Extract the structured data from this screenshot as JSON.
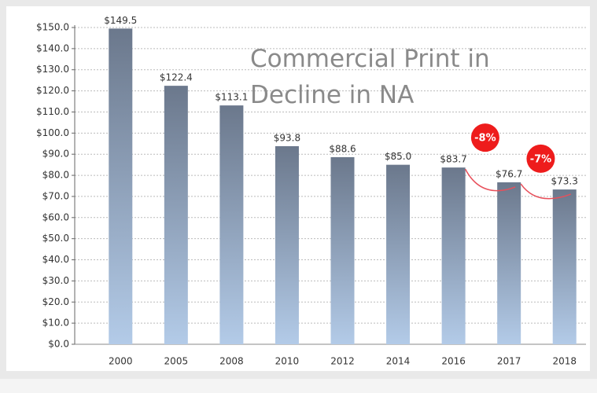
{
  "chart_data": {
    "type": "bar",
    "title": "Commercial Print in Decline in NA",
    "categories": [
      "2000",
      "2005",
      "2008",
      "2010",
      "2012",
      "2014",
      "2016",
      "2017",
      "2018"
    ],
    "values": [
      149.5,
      122.4,
      113.1,
      93.8,
      88.6,
      85.0,
      83.7,
      76.7,
      73.3
    ],
    "value_labels": [
      "$149.5",
      "$122.4",
      "$113.1",
      "$93.8",
      "$88.6",
      "$85.0",
      "$83.7",
      "$76.7",
      "$73.3"
    ],
    "colors": [
      "#6b788c",
      "#b3cbe8"
    ],
    "ylim": [
      0,
      150
    ],
    "yticks": [
      {
        "value": 0,
        "label": "$0.0"
      },
      {
        "value": 10,
        "label": "$10.0"
      },
      {
        "value": 20,
        "label": "$20.0"
      },
      {
        "value": 30,
        "label": "$30.0"
      },
      {
        "value": 40,
        "label": "$40.0"
      },
      {
        "value": 50,
        "label": "$50.0"
      },
      {
        "value": 60,
        "label": "$60.0"
      },
      {
        "value": 70,
        "label": "$70.0"
      },
      {
        "value": 80,
        "label": "$80.0"
      },
      {
        "value": 90,
        "label": "$90.0"
      },
      {
        "value": 100,
        "label": "$100.0"
      },
      {
        "value": 110,
        "label": "$110.0"
      },
      {
        "value": 120,
        "label": "$120.0"
      },
      {
        "value": 130,
        "label": "$130.0"
      },
      {
        "value": 140,
        "label": "$140.0"
      },
      {
        "value": 150,
        "label": "$150.0"
      }
    ],
    "grid": true,
    "annotations": [
      "-8%",
      "-7%"
    ]
  }
}
